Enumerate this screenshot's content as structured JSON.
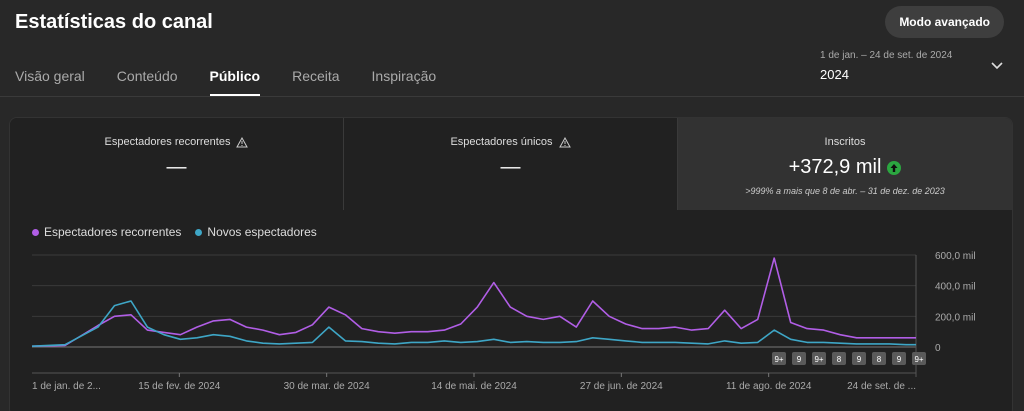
{
  "header": {
    "title": "Estatísticas do canal",
    "advanced_label": "Modo avançado"
  },
  "tabs": [
    {
      "label": "Visão geral",
      "active": false
    },
    {
      "label": "Conteúdo",
      "active": false
    },
    {
      "label": "Público",
      "active": true
    },
    {
      "label": "Receita",
      "active": false
    },
    {
      "label": "Inspiração",
      "active": false
    }
  ],
  "date_range": {
    "sub": "1 de jan. – 24 de set. de 2024",
    "main": "2024"
  },
  "metrics": [
    {
      "label": "Espectadores recorrentes",
      "value": "—"
    },
    {
      "label": "Espectadores únicos",
      "value": "—"
    },
    {
      "label": "Inscritos",
      "value": "+372,9 mil",
      "note": ">999% a mais que 8 de abr. – 31 de dez. de 2023"
    }
  ],
  "colors": {
    "returning": "#b15ee6",
    "new": "#3ea6c6",
    "up_badge": "#2ba640"
  },
  "chart_data": {
    "type": "line",
    "legend": [
      "Espectadores recorrentes",
      "Novos espectadores"
    ],
    "y_ticks": [
      "600,0 mil",
      "400,0 mil",
      "200,0 mil",
      "0"
    ],
    "ylim": [
      0,
      600
    ],
    "x_ticks": [
      "1 de jan. de 2...",
      "15 de fev. de 2024",
      "30 de mar. de 2024",
      "14 de mai. de 2024",
      "27 de jun. de 2024",
      "11 de ago. de 2024",
      "24 de set. de ..."
    ],
    "badges": [
      "9+",
      "9",
      "9+",
      "8",
      "9",
      "8",
      "9",
      "9+"
    ],
    "x_days": [
      0,
      10,
      20,
      25,
      30,
      35,
      40,
      45,
      50,
      55,
      60,
      65,
      70,
      75,
      80,
      85,
      90,
      95,
      100,
      105,
      110,
      115,
      120,
      125,
      130,
      135,
      140,
      145,
      150,
      155,
      160,
      165,
      170,
      175,
      180,
      185,
      190,
      195,
      200,
      205,
      210,
      215,
      220,
      225,
      230,
      235,
      240,
      245,
      250,
      255,
      260,
      265,
      268
    ],
    "series": [
      {
        "name": "Espectadores recorrentes",
        "values": [
          5,
          10,
          140,
          200,
          210,
          110,
          95,
          80,
          130,
          170,
          180,
          130,
          110,
          80,
          95,
          145,
          260,
          210,
          120,
          100,
          90,
          100,
          100,
          110,
          150,
          260,
          420,
          260,
          200,
          180,
          200,
          130,
          300,
          200,
          150,
          120,
          120,
          130,
          110,
          120,
          240,
          120,
          180,
          580,
          160,
          120,
          110,
          80,
          60,
          60,
          60,
          60,
          60
        ]
      },
      {
        "name": "Novos espectadores",
        "values": [
          5,
          15,
          130,
          270,
          300,
          130,
          80,
          50,
          60,
          80,
          70,
          40,
          25,
          20,
          25,
          30,
          130,
          40,
          35,
          25,
          20,
          30,
          30,
          40,
          30,
          35,
          50,
          30,
          35,
          30,
          30,
          35,
          60,
          50,
          40,
          30,
          30,
          30,
          25,
          20,
          40,
          25,
          30,
          110,
          50,
          30,
          30,
          25,
          20,
          20,
          20,
          15,
          15
        ]
      }
    ]
  }
}
